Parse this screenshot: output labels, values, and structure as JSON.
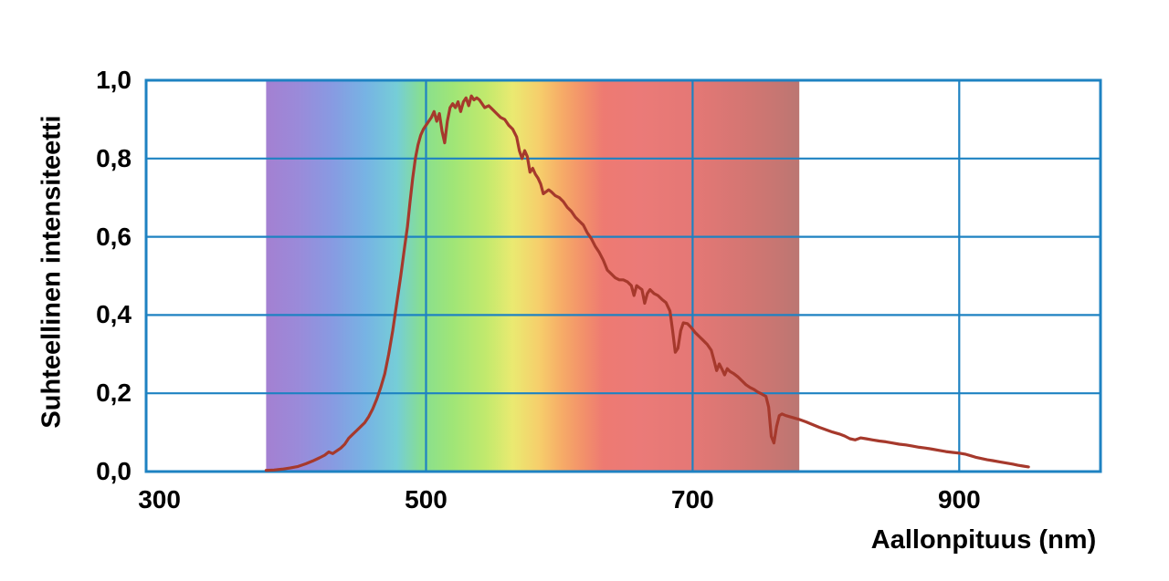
{
  "page": {
    "background": "#ffffff"
  },
  "chart_data": {
    "type": "line",
    "title": "",
    "xlabel": "Aallonpituus (nm)",
    "ylabel": "Suhteellinen intensiteetti",
    "xlim": [
      290,
      1006
    ],
    "ylim": [
      0,
      1
    ],
    "grid_on": true,
    "legend": "none",
    "grid_color": "#1e82c2",
    "line_color": "#a6392c",
    "x_ticks": [
      {
        "value": 300,
        "label": "300"
      },
      {
        "value": 500,
        "label": "500"
      },
      {
        "value": 700,
        "label": "700"
      },
      {
        "value": 900,
        "label": "900"
      }
    ],
    "y_ticks": [
      {
        "value": 0.0,
        "label": "0,0"
      },
      {
        "value": 0.2,
        "label": "0,2"
      },
      {
        "value": 0.4,
        "label": "0,4"
      },
      {
        "value": 0.6,
        "label": "0,6"
      },
      {
        "value": 0.8,
        "label": "0,8"
      },
      {
        "value": 1.0,
        "label": "1,0"
      }
    ],
    "x_gridlines": [
      500,
      700,
      900
    ],
    "y_gridlines": [
      0.2,
      0.4,
      0.6,
      0.8
    ],
    "spectrum_band": {
      "from_nm": 380,
      "to_nm": 780,
      "opacity": 0.83,
      "stops": [
        {
          "nm": 380,
          "color": "#9166c8"
        },
        {
          "nm": 405,
          "color": "#8573d2"
        },
        {
          "nm": 430,
          "color": "#6f86dc"
        },
        {
          "nm": 455,
          "color": "#5ba4de"
        },
        {
          "nm": 478,
          "color": "#59c3cf"
        },
        {
          "nm": 497,
          "color": "#6fd879"
        },
        {
          "nm": 520,
          "color": "#8ce05b"
        },
        {
          "nm": 545,
          "color": "#b5e54f"
        },
        {
          "nm": 565,
          "color": "#e6e554"
        },
        {
          "nm": 585,
          "color": "#f4c44d"
        },
        {
          "nm": 602,
          "color": "#f49a48"
        },
        {
          "nm": 618,
          "color": "#f07a4c"
        },
        {
          "nm": 633,
          "color": "#ea5f55"
        },
        {
          "nm": 660,
          "color": "#e75f5c"
        },
        {
          "nm": 700,
          "color": "#df5c59"
        },
        {
          "nm": 735,
          "color": "#cd5a56"
        },
        {
          "nm": 762,
          "color": "#bc5a55"
        },
        {
          "nm": 780,
          "color": "#ad5a55"
        }
      ]
    },
    "series": [
      {
        "name": "suhteellinen intensiteetti",
        "points": [
          [
            380,
            0.003
          ],
          [
            386,
            0.004
          ],
          [
            392,
            0.006
          ],
          [
            398,
            0.009
          ],
          [
            404,
            0.013
          ],
          [
            410,
            0.02
          ],
          [
            415,
            0.027
          ],
          [
            420,
            0.035
          ],
          [
            424,
            0.042
          ],
          [
            427,
            0.05
          ],
          [
            430,
            0.046
          ],
          [
            433,
            0.053
          ],
          [
            436,
            0.06
          ],
          [
            439,
            0.07
          ],
          [
            442,
            0.085
          ],
          [
            445,
            0.095
          ],
          [
            448,
            0.105
          ],
          [
            451,
            0.115
          ],
          [
            454,
            0.125
          ],
          [
            457,
            0.14
          ],
          [
            460,
            0.16
          ],
          [
            463,
            0.185
          ],
          [
            466,
            0.215
          ],
          [
            469,
            0.25
          ],
          [
            472,
            0.3
          ],
          [
            475,
            0.36
          ],
          [
            478,
            0.43
          ],
          [
            481,
            0.5
          ],
          [
            484,
            0.575
          ],
          [
            486,
            0.625
          ],
          [
            488,
            0.69
          ],
          [
            490,
            0.75
          ],
          [
            492,
            0.8
          ],
          [
            494,
            0.835
          ],
          [
            496,
            0.86
          ],
          [
            498,
            0.875
          ],
          [
            500,
            0.885
          ],
          [
            502,
            0.895
          ],
          [
            504,
            0.905
          ],
          [
            506,
            0.92
          ],
          [
            508,
            0.895
          ],
          [
            510,
            0.915
          ],
          [
            512,
            0.87
          ],
          [
            514,
            0.84
          ],
          [
            516,
            0.895
          ],
          [
            518,
            0.93
          ],
          [
            520,
            0.94
          ],
          [
            522,
            0.93
          ],
          [
            524,
            0.945
          ],
          [
            526,
            0.92
          ],
          [
            528,
            0.945
          ],
          [
            530,
            0.955
          ],
          [
            532,
            0.935
          ],
          [
            534,
            0.96
          ],
          [
            536,
            0.95
          ],
          [
            538,
            0.955
          ],
          [
            540,
            0.95
          ],
          [
            542,
            0.94
          ],
          [
            544,
            0.93
          ],
          [
            547,
            0.935
          ],
          [
            550,
            0.925
          ],
          [
            553,
            0.915
          ],
          [
            556,
            0.905
          ],
          [
            559,
            0.9
          ],
          [
            562,
            0.885
          ],
          [
            565,
            0.875
          ],
          [
            568,
            0.855
          ],
          [
            570,
            0.82
          ],
          [
            572,
            0.8
          ],
          [
            574,
            0.82
          ],
          [
            576,
            0.805
          ],
          [
            578,
            0.765
          ],
          [
            580,
            0.775
          ],
          [
            582,
            0.76
          ],
          [
            584,
            0.75
          ],
          [
            586,
            0.735
          ],
          [
            588,
            0.71
          ],
          [
            590,
            0.715
          ],
          [
            592,
            0.72
          ],
          [
            594,
            0.715
          ],
          [
            597,
            0.705
          ],
          [
            600,
            0.7
          ],
          [
            603,
            0.69
          ],
          [
            606,
            0.675
          ],
          [
            609,
            0.665
          ],
          [
            612,
            0.65
          ],
          [
            615,
            0.64
          ],
          [
            618,
            0.63
          ],
          [
            621,
            0.61
          ],
          [
            624,
            0.595
          ],
          [
            627,
            0.575
          ],
          [
            630,
            0.56
          ],
          [
            633,
            0.54
          ],
          [
            636,
            0.515
          ],
          [
            639,
            0.505
          ],
          [
            642,
            0.495
          ],
          [
            645,
            0.49
          ],
          [
            648,
            0.49
          ],
          [
            651,
            0.485
          ],
          [
            654,
            0.475
          ],
          [
            656,
            0.45
          ],
          [
            658,
            0.475
          ],
          [
            660,
            0.47
          ],
          [
            662,
            0.465
          ],
          [
            664,
            0.43
          ],
          [
            666,
            0.455
          ],
          [
            668,
            0.465
          ],
          [
            671,
            0.455
          ],
          [
            674,
            0.45
          ],
          [
            677,
            0.44
          ],
          [
            680,
            0.432
          ],
          [
            683,
            0.41
          ],
          [
            685,
            0.36
          ],
          [
            687,
            0.305
          ],
          [
            689,
            0.315
          ],
          [
            691,
            0.36
          ],
          [
            693,
            0.38
          ],
          [
            696,
            0.378
          ],
          [
            699,
            0.368
          ],
          [
            702,
            0.355
          ],
          [
            705,
            0.345
          ],
          [
            708,
            0.335
          ],
          [
            711,
            0.325
          ],
          [
            714,
            0.31
          ],
          [
            716,
            0.285
          ],
          [
            718,
            0.258
          ],
          [
            720,
            0.275
          ],
          [
            722,
            0.262
          ],
          [
            724,
            0.247
          ],
          [
            726,
            0.263
          ],
          [
            728,
            0.256
          ],
          [
            731,
            0.25
          ],
          [
            734,
            0.242
          ],
          [
            737,
            0.232
          ],
          [
            740,
            0.222
          ],
          [
            743,
            0.215
          ],
          [
            746,
            0.21
          ],
          [
            749,
            0.203
          ],
          [
            752,
            0.198
          ],
          [
            755,
            0.192
          ],
          [
            757,
            0.165
          ],
          [
            759,
            0.09
          ],
          [
            761,
            0.073
          ],
          [
            763,
            0.115
          ],
          [
            765,
            0.143
          ],
          [
            767,
            0.147
          ],
          [
            770,
            0.143
          ],
          [
            773,
            0.14
          ],
          [
            776,
            0.137
          ],
          [
            780,
            0.133
          ],
          [
            785,
            0.127
          ],
          [
            790,
            0.12
          ],
          [
            795,
            0.113
          ],
          [
            800,
            0.107
          ],
          [
            805,
            0.101
          ],
          [
            810,
            0.096
          ],
          [
            814,
            0.091
          ],
          [
            818,
            0.084
          ],
          [
            822,
            0.081
          ],
          [
            826,
            0.086
          ],
          [
            830,
            0.084
          ],
          [
            835,
            0.081
          ],
          [
            840,
            0.078
          ],
          [
            845,
            0.076
          ],
          [
            850,
            0.073
          ],
          [
            855,
            0.07
          ],
          [
            860,
            0.068
          ],
          [
            865,
            0.065
          ],
          [
            870,
            0.062
          ],
          [
            875,
            0.06
          ],
          [
            880,
            0.057
          ],
          [
            885,
            0.054
          ],
          [
            890,
            0.051
          ],
          [
            895,
            0.049
          ],
          [
            900,
            0.047
          ],
          [
            905,
            0.044
          ],
          [
            909,
            0.04
          ],
          [
            913,
            0.036
          ],
          [
            917,
            0.033
          ],
          [
            921,
            0.03
          ],
          [
            925,
            0.028
          ],
          [
            930,
            0.025
          ],
          [
            935,
            0.022
          ],
          [
            940,
            0.019
          ],
          [
            944,
            0.016
          ],
          [
            948,
            0.014
          ],
          [
            952,
            0.012
          ]
        ]
      }
    ]
  }
}
